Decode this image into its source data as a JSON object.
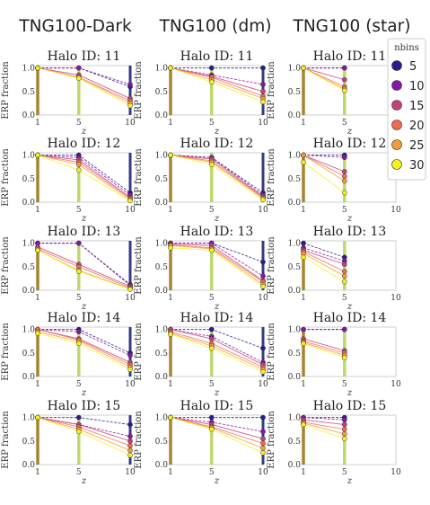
{
  "chart_data": {
    "type": "line",
    "column_titles": [
      "TNG100-Dark",
      "TNG100 (dm)",
      "TNG100 (star)"
    ],
    "panel_title_prefix": "Halo ID: ",
    "halo_ids": [
      11,
      12,
      13,
      14,
      15
    ],
    "ylabel": "ERP fraction",
    "xlabel": "z",
    "x": [
      1,
      5,
      10
    ],
    "xticks": [
      "1",
      "5",
      "10"
    ],
    "yticks": [
      "0.0",
      "0.5",
      "1.0"
    ],
    "ylim": [
      0,
      1.05
    ],
    "legend": {
      "title": "nbins",
      "placement": "top-right",
      "entries": [
        {
          "name": "5",
          "color": "#2a1c8f"
        },
        {
          "name": "10",
          "color": "#8a14a8"
        },
        {
          "name": "15",
          "color": "#c2417a"
        },
        {
          "name": "20",
          "color": "#ee6b52"
        },
        {
          "name": "25",
          "color": "#f89a3a"
        },
        {
          "name": "30",
          "color": "#f4f21c"
        }
      ]
    },
    "vertical_lines": [
      {
        "x": 1,
        "color": "#a07a1c"
      },
      {
        "x": 5,
        "color": "#b5d65c"
      },
      {
        "x": 10,
        "color": "#1f2a7a"
      }
    ],
    "panels": [
      {
        "column": "TNG100-Dark",
        "halo": 11,
        "series": [
          {
            "values": [
              1,
              1,
              0.6
            ]
          },
          {
            "values": [
              1,
              1,
              0.65
            ]
          },
          {
            "values": [
              1,
              0.85,
              0.35
            ]
          },
          {
            "values": [
              1,
              0.8,
              0.3
            ]
          },
          {
            "values": [
              1,
              0.8,
              0.25
            ]
          },
          {
            "values": [
              1,
              0.78,
              0.2
            ]
          }
        ]
      },
      {
        "column": "TNG100 (dm)",
        "halo": 11,
        "series": [
          {
            "values": [
              1,
              1,
              1
            ]
          },
          {
            "values": [
              1,
              0.85,
              0.65
            ]
          },
          {
            "values": [
              1,
              0.82,
              0.5
            ]
          },
          {
            "values": [
              1,
              0.8,
              0.4
            ]
          },
          {
            "values": [
              1,
              0.75,
              0.35
            ]
          },
          {
            "values": [
              1,
              0.7,
              0.28
            ]
          }
        ]
      },
      {
        "column": "TNG100 (star)",
        "halo": 11,
        "series": [
          {
            "values": [
              1,
              1
            ]
          },
          {
            "values": [
              1,
              1
            ]
          },
          {
            "values": [
              1,
              0.75
            ]
          },
          {
            "values": [
              1,
              0.6
            ]
          },
          {
            "values": [
              1,
              0.55
            ]
          },
          {
            "values": [
              1,
              0.52
            ]
          }
        ]
      },
      {
        "column": "TNG100-Dark",
        "halo": 12,
        "series": [
          {
            "values": [
              1,
              1,
              0.2
            ]
          },
          {
            "values": [
              1,
              0.95,
              0.15
            ]
          },
          {
            "values": [
              1,
              0.9,
              0.1
            ]
          },
          {
            "values": [
              1,
              0.85,
              0.08
            ]
          },
          {
            "values": [
              1,
              0.8,
              0.05
            ]
          },
          {
            "values": [
              1,
              0.68,
              0.03
            ]
          }
        ]
      },
      {
        "column": "TNG100 (dm)",
        "halo": 12,
        "series": [
          {
            "values": [
              1,
              0.95,
              0.2
            ]
          },
          {
            "values": [
              1,
              0.95,
              0.15
            ]
          },
          {
            "values": [
              1,
              0.92,
              0.12
            ]
          },
          {
            "values": [
              1,
              0.88,
              0.1
            ]
          },
          {
            "values": [
              1,
              0.85,
              0.08
            ]
          },
          {
            "values": [
              1,
              0.8,
              0.05
            ]
          }
        ]
      },
      {
        "column": "TNG100 (star)",
        "halo": 12,
        "series": [
          {
            "values": [
              1,
              1
            ]
          },
          {
            "values": [
              1,
              0.95
            ]
          },
          {
            "values": [
              1,
              0.65
            ]
          },
          {
            "values": [
              1,
              0.55
            ]
          },
          {
            "values": [
              1,
              0.45
            ]
          },
          {
            "values": [
              0.85,
              0.2
            ]
          }
        ]
      },
      {
        "column": "TNG100-Dark",
        "halo": 13,
        "series": [
          {
            "values": [
              1,
              1,
              0.12
            ]
          },
          {
            "values": [
              1,
              1,
              0.1
            ]
          },
          {
            "values": [
              0.92,
              0.55,
              0.08
            ]
          },
          {
            "values": [
              0.88,
              0.5,
              0.05
            ]
          },
          {
            "values": [
              0.85,
              0.42,
              0.03
            ]
          },
          {
            "values": [
              0.85,
              0.4,
              0.02
            ]
          }
        ]
      },
      {
        "column": "TNG100 (dm)",
        "halo": 13,
        "series": [
          {
            "values": [
              1,
              1,
              0.6
            ]
          },
          {
            "values": [
              1,
              1,
              0.3
            ]
          },
          {
            "values": [
              0.98,
              0.95,
              0.2
            ]
          },
          {
            "values": [
              0.96,
              0.9,
              0.18
            ]
          },
          {
            "values": [
              0.95,
              0.88,
              0.12
            ]
          },
          {
            "values": [
              0.9,
              0.85,
              0.08
            ]
          }
        ]
      },
      {
        "column": "TNG100 (star)",
        "halo": 13,
        "series": [
          {
            "values": [
              1,
              0.7
            ]
          },
          {
            "values": [
              0.9,
              0.62
            ]
          },
          {
            "values": [
              0.85,
              0.55
            ]
          },
          {
            "values": [
              0.82,
              0.4
            ]
          },
          {
            "values": [
              0.78,
              0.3
            ]
          },
          {
            "values": [
              0.7,
              0.18
            ]
          }
        ]
      },
      {
        "column": "TNG100-Dark",
        "halo": 14,
        "series": [
          {
            "values": [
              1,
              1,
              0.5
            ]
          },
          {
            "values": [
              1,
              0.95,
              0.45
            ]
          },
          {
            "values": [
              1,
              0.8,
              0.3
            ]
          },
          {
            "values": [
              1,
              0.78,
              0.25
            ]
          },
          {
            "values": [
              0.95,
              0.75,
              0.2
            ]
          },
          {
            "values": [
              0.92,
              0.7,
              0.15
            ]
          }
        ]
      },
      {
        "column": "TNG100 (dm)",
        "halo": 14,
        "series": [
          {
            "values": [
              1,
              1,
              0.6
            ]
          },
          {
            "values": [
              1,
              0.85,
              0.3
            ]
          },
          {
            "values": [
              1,
              0.8,
              0.25
            ]
          },
          {
            "values": [
              0.95,
              0.7,
              0.2
            ]
          },
          {
            "values": [
              0.92,
              0.65,
              0.15
            ]
          },
          {
            "values": [
              0.9,
              0.6,
              0.1
            ]
          }
        ]
      },
      {
        "column": "TNG100 (star)",
        "halo": 14,
        "series": [
          {
            "values": [
              1,
              1
            ]
          },
          {
            "values": [
              1,
              1
            ]
          },
          {
            "values": [
              0.8,
              0.55
            ]
          },
          {
            "values": [
              0.75,
              0.5
            ]
          },
          {
            "values": [
              0.72,
              0.45
            ]
          },
          {
            "values": [
              0.7,
              0.4
            ]
          }
        ]
      },
      {
        "column": "TNG100-Dark",
        "halo": 15,
        "series": [
          {
            "values": [
              1,
              1,
              0.85
            ]
          },
          {
            "values": [
              1,
              0.85,
              0.6
            ]
          },
          {
            "values": [
              1,
              0.85,
              0.5
            ]
          },
          {
            "values": [
              1,
              0.8,
              0.4
            ]
          },
          {
            "values": [
              1,
              0.75,
              0.3
            ]
          },
          {
            "values": [
              1,
              0.7,
              0.2
            ]
          }
        ]
      },
      {
        "column": "TNG100 (dm)",
        "halo": 15,
        "series": [
          {
            "values": [
              1,
              1,
              1
            ]
          },
          {
            "values": [
              1,
              0.9,
              0.7
            ]
          },
          {
            "values": [
              1,
              0.85,
              0.55
            ]
          },
          {
            "values": [
              1,
              0.8,
              0.45
            ]
          },
          {
            "values": [
              1,
              0.78,
              0.35
            ]
          },
          {
            "values": [
              1,
              0.75,
              0.25
            ]
          }
        ]
      },
      {
        "column": "TNG100 (star)",
        "halo": 15,
        "series": [
          {
            "values": [
              1,
              1
            ]
          },
          {
            "values": [
              1,
              0.95
            ]
          },
          {
            "values": [
              0.95,
              0.85
            ]
          },
          {
            "values": [
              0.9,
              0.75
            ]
          },
          {
            "values": [
              0.88,
              0.65
            ]
          },
          {
            "values": [
              0.85,
              0.55
            ]
          }
        ]
      }
    ]
  }
}
